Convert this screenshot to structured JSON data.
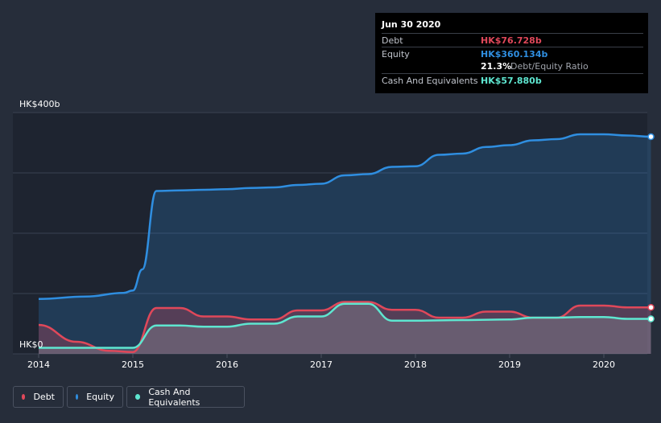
{
  "tooltip": {
    "date": "Jun 30 2020",
    "debt_label": "Debt",
    "debt_value": "HK$76.728b",
    "equity_label": "Equity",
    "equity_value": "HK$360.134b",
    "ratio_value": "21.3%",
    "ratio_text": "Debt/Equity Ratio",
    "cash_label": "Cash And Equivalents",
    "cash_value": "HK$57.880b"
  },
  "legend": {
    "debt": "Debt",
    "equity": "Equity",
    "cash": "Cash And Equivalents"
  },
  "colors": {
    "debt": "#e0485a",
    "equity": "#2f8ee0",
    "cash": "#5ee6d0",
    "background": "#262d3a"
  },
  "chart_data": {
    "type": "area",
    "y_top_label": "HK$400b",
    "y_bottom_label": "HK$0",
    "ylim": [
      0,
      400
    ],
    "xlim": [
      2014.0,
      2020.5
    ],
    "x_ticks": [
      "2014",
      "2015",
      "2016",
      "2017",
      "2018",
      "2019",
      "2020"
    ],
    "grid": true,
    "legend_position": "bottom-left",
    "series": [
      {
        "name": "Equity",
        "x": [
          2014.0,
          2014.5,
          2014.9,
          2015.0,
          2015.1,
          2015.25,
          2015.5,
          2015.75,
          2016.0,
          2016.25,
          2016.5,
          2016.75,
          2017.0,
          2017.25,
          2017.5,
          2017.75,
          2018.0,
          2018.25,
          2018.5,
          2018.75,
          2019.0,
          2019.25,
          2019.5,
          2019.75,
          2020.0,
          2020.25,
          2020.5
        ],
        "values": [
          91,
          95,
          101,
          105,
          140,
          270,
          271,
          272,
          273,
          275,
          276,
          280,
          282,
          296,
          298,
          310,
          311,
          330,
          332,
          343,
          346,
          354,
          356,
          364,
          364,
          362,
          360
        ]
      },
      {
        "name": "Debt",
        "x": [
          2014.0,
          2014.4,
          2014.75,
          2015.0,
          2015.25,
          2015.5,
          2015.75,
          2016.0,
          2016.25,
          2016.5,
          2016.75,
          2017.0,
          2017.25,
          2017.5,
          2017.75,
          2018.0,
          2018.25,
          2018.5,
          2018.75,
          2019.0,
          2019.25,
          2019.5,
          2019.75,
          2020.0,
          2020.25,
          2020.5
        ],
        "values": [
          48,
          20,
          5,
          3,
          76,
          76,
          62,
          62,
          57,
          57,
          72,
          72,
          86,
          86,
          73,
          73,
          60,
          60,
          70,
          70,
          60,
          60,
          80,
          80,
          77,
          77
        ]
      },
      {
        "name": "Cash And Equivalents",
        "x": [
          2014.0,
          2014.5,
          2015.0,
          2015.25,
          2015.5,
          2015.75,
          2016.0,
          2016.25,
          2016.5,
          2016.75,
          2017.0,
          2017.25,
          2017.5,
          2017.75,
          2018.0,
          2018.5,
          2019.0,
          2019.25,
          2019.5,
          2019.75,
          2020.0,
          2020.25,
          2020.5
        ],
        "values": [
          10,
          10,
          10,
          47,
          47,
          45,
          45,
          50,
          50,
          62,
          62,
          83,
          83,
          55,
          55,
          56,
          57,
          60,
          60,
          61,
          61,
          58,
          58
        ]
      }
    ]
  }
}
